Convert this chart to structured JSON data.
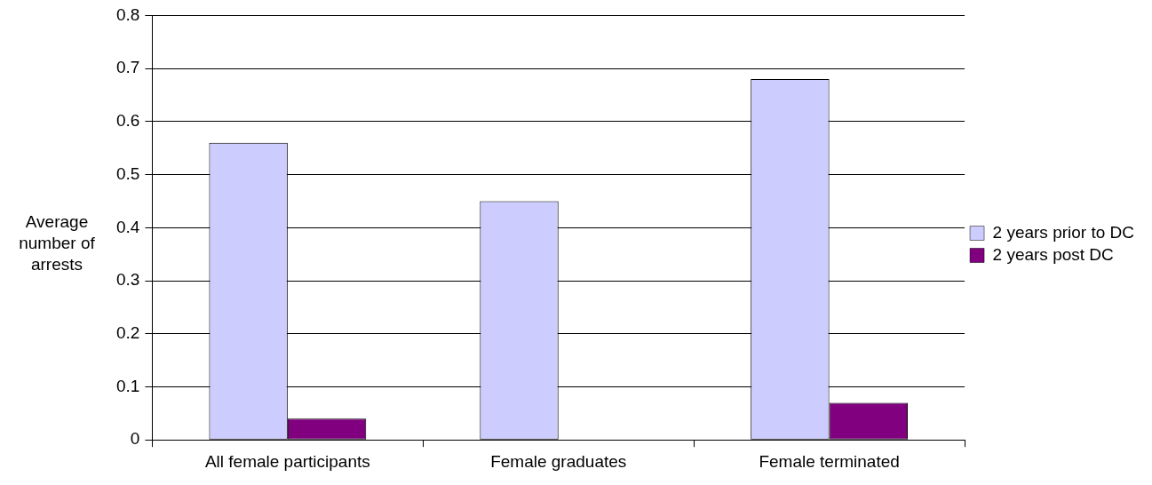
{
  "chart_data": {
    "type": "bar",
    "ylabel": "Average number of arrests",
    "categories": [
      "All female participants",
      "Female graduates",
      "Female terminated"
    ],
    "series": [
      {
        "name": "2 years prior to DC",
        "color": "#ccccff",
        "values": [
          0.56,
          0.45,
          0.68
        ]
      },
      {
        "name": "2 years post DC",
        "color": "#800080",
        "values": [
          0.04,
          0,
          0.07
        ]
      }
    ],
    "ylim": [
      0,
      0.8
    ],
    "yticks": [
      0,
      0.1,
      0.2,
      0.3,
      0.4,
      0.5,
      0.6,
      0.7,
      0.8
    ],
    "grid": "y",
    "legend": "right"
  }
}
